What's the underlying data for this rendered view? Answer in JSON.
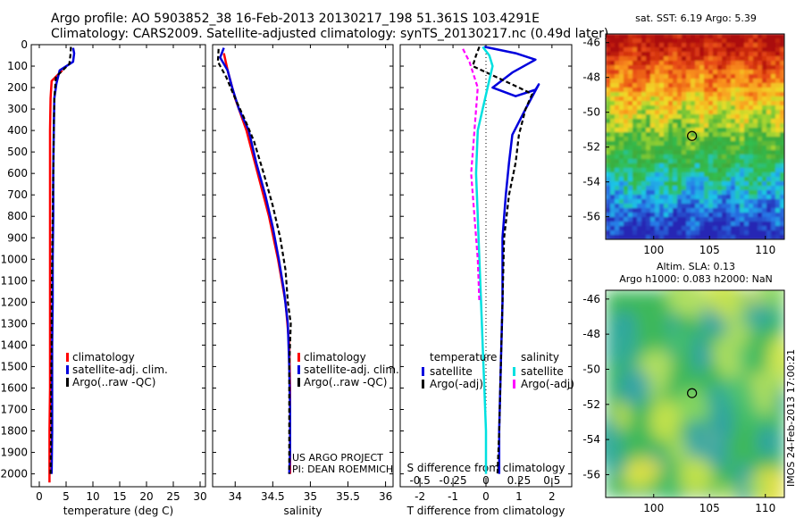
{
  "header": {
    "line1": "Argo profile: AO 5903852_38 16-Feb-2013 20130217_198 51.361S 103.4291E",
    "line2": "Climatology: CARS2009. Satellite-adjusted climatology: synTS_20130217.nc (0.49d later)"
  },
  "colors": {
    "climatology": "#ff0000",
    "satellite": "#0000dd",
    "argo": "#000000",
    "sat_salinity": "#00e0e0",
    "argo_salinity": "#ff00ff"
  },
  "chart_data": [
    {
      "type": "line",
      "id": "temperature",
      "xlabel": "temperature (deg C)",
      "ylabel": "",
      "xlim": [
        -1.5,
        31
      ],
      "ylim": [
        2060,
        0
      ],
      "xticks": [
        0,
        5,
        10,
        15,
        20,
        25,
        30
      ],
      "yticks": [
        0,
        100,
        200,
        300,
        400,
        500,
        600,
        700,
        800,
        900,
        1000,
        1100,
        1200,
        1300,
        1400,
        1500,
        1600,
        1700,
        1800,
        1900,
        2000
      ],
      "legend": [
        "climatology",
        "satellite-adj. clim.",
        "Argo(..raw -QC)"
      ],
      "series": [
        {
          "name": "climatology",
          "color": "#ff0000",
          "dash": "",
          "width": 2.5,
          "points": [
            [
              4.3,
              120
            ],
            [
              2.3,
              170
            ],
            [
              2.1,
              250
            ],
            [
              2.0,
              400
            ],
            [
              2.0,
              600
            ],
            [
              2.0,
              800
            ],
            [
              2.0,
              1000
            ],
            [
              2.0,
              1200
            ],
            [
              2.0,
              1400
            ],
            [
              2.0,
              1600
            ],
            [
              1.9,
              1800
            ],
            [
              1.9,
              2000
            ],
            [
              1.9,
              2040
            ]
          ]
        },
        {
          "name": "satellite-adj. clim.",
          "color": "#0000dd",
          "dash": "",
          "width": 2.5,
          "points": [
            [
              6.3,
              15
            ],
            [
              6.5,
              40
            ],
            [
              6.3,
              80
            ],
            [
              3.8,
              120
            ],
            [
              3.2,
              180
            ],
            [
              2.8,
              250
            ],
            [
              2.7,
              400
            ],
            [
              2.6,
              600
            ],
            [
              2.6,
              800
            ],
            [
              2.5,
              1000
            ],
            [
              2.5,
              1200
            ],
            [
              2.4,
              1400
            ],
            [
              2.4,
              1600
            ],
            [
              2.4,
              1800
            ],
            [
              2.3,
              2000
            ]
          ]
        },
        {
          "name": "Argo(..raw -QC)",
          "color": "#000000",
          "dash": "5,3",
          "width": 2.2,
          "points": [
            [
              5.9,
              10
            ],
            [
              5.8,
              50
            ],
            [
              5.6,
              90
            ],
            [
              3.1,
              150
            ],
            [
              2.8,
              250
            ],
            [
              2.7,
              400
            ],
            [
              2.6,
              600
            ],
            [
              2.5,
              800
            ],
            [
              2.4,
              1000
            ],
            [
              2.3,
              1200
            ],
            [
              2.3,
              1400
            ],
            [
              2.2,
              1600
            ],
            [
              2.2,
              1800
            ],
            [
              2.1,
              2000
            ]
          ]
        }
      ]
    },
    {
      "type": "line",
      "id": "salinity",
      "xlabel": "salinity",
      "ylabel": "",
      "xlim": [
        33.7,
        36.1
      ],
      "ylim": [
        2060,
        0
      ],
      "xticks": [
        34,
        34.5,
        35,
        35.5,
        36
      ],
      "xticklabels": [
        "34",
        "34.5",
        "35",
        "35.5",
        "36"
      ],
      "legend": [
        "climatology",
        "satellite-adj. clim.",
        "Argo(..raw -QC)"
      ],
      "annotation": [
        "US ARGO PROJECT",
        "PI: DEAN ROEMMICH"
      ],
      "series": [
        {
          "name": "climatology",
          "color": "#ff0000",
          "dash": "",
          "width": 2.5,
          "points": [
            [
              33.85,
              40
            ],
            [
              33.9,
              120
            ],
            [
              34.0,
              250
            ],
            [
              34.15,
              400
            ],
            [
              34.3,
              600
            ],
            [
              34.45,
              800
            ],
            [
              34.57,
              1000
            ],
            [
              34.67,
              1200
            ],
            [
              34.72,
              1400
            ],
            [
              34.73,
              1600
            ],
            [
              34.73,
              1800
            ],
            [
              34.73,
              2000
            ]
          ]
        },
        {
          "name": "satellite-adj. clim.",
          "color": "#0000dd",
          "dash": "",
          "width": 2.5,
          "points": [
            [
              33.85,
              15
            ],
            [
              33.8,
              60
            ],
            [
              33.9,
              120
            ],
            [
              33.96,
              200
            ],
            [
              34.05,
              300
            ],
            [
              34.18,
              400
            ],
            [
              34.28,
              550
            ],
            [
              34.4,
              700
            ],
            [
              34.5,
              850
            ],
            [
              34.58,
              1000
            ],
            [
              34.65,
              1150
            ],
            [
              34.7,
              1300
            ],
            [
              34.72,
              1500
            ],
            [
              34.73,
              1700
            ],
            [
              34.73,
              1900
            ],
            [
              34.72,
              2000
            ]
          ]
        },
        {
          "name": "Argo(..raw -QC)",
          "color": "#000000",
          "dash": "5,3",
          "width": 2.2,
          "points": [
            [
              33.78,
              20
            ],
            [
              33.77,
              80
            ],
            [
              33.88,
              150
            ],
            [
              34.0,
              250
            ],
            [
              34.13,
              350
            ],
            [
              34.25,
              450
            ],
            [
              34.38,
              600
            ],
            [
              34.5,
              750
            ],
            [
              34.6,
              900
            ],
            [
              34.67,
              1050
            ],
            [
              34.7,
              1200
            ],
            [
              34.74,
              1300
            ],
            [
              34.72,
              1500
            ],
            [
              34.72,
              1700
            ],
            [
              34.72,
              1900
            ],
            [
              34.72,
              2000
            ]
          ]
        }
      ]
    },
    {
      "type": "line",
      "id": "difference",
      "xlabel": "T difference from climatology",
      "xlabel_top": "S difference from climatology",
      "xlim": [
        -2.6,
        2.6
      ],
      "ylim": [
        2060,
        0
      ],
      "xticks": [
        -2,
        -1,
        0,
        1,
        2
      ],
      "xticks_top": [
        -0.5,
        -0.25,
        0,
        0.25,
        0.5
      ],
      "xticklabels_top": [
        "-0.5",
        "-0.25",
        "0",
        "0.25",
        "0.5"
      ],
      "legend_titles": [
        "temperature",
        "salinity"
      ],
      "legend": [
        "satellite",
        "Argo(-adj)",
        "satellite",
        "Argo(-adj)"
      ],
      "series": [
        {
          "name": "satellite",
          "color": "#0000dd",
          "dash": "",
          "width": 2.5,
          "points": [
            [
              -0.05,
              10
            ],
            [
              0.9,
              40
            ],
            [
              1.5,
              70
            ],
            [
              0.8,
              130
            ],
            [
              0.2,
              200
            ],
            [
              0.9,
              240
            ],
            [
              1.5,
              210
            ],
            [
              1.6,
              185
            ],
            [
              1.2,
              300
            ],
            [
              0.8,
              420
            ],
            [
              0.7,
              550
            ],
            [
              0.6,
              700
            ],
            [
              0.5,
              900
            ],
            [
              0.5,
              1200
            ],
            [
              0.45,
              1500
            ],
            [
              0.4,
              1800
            ],
            [
              0.4,
              2000
            ]
          ]
        },
        {
          "name": "Argo(-adj)",
          "color": "#000000",
          "dash": "5,3",
          "width": 2.2,
          "points": [
            [
              -0.2,
              10
            ],
            [
              -0.3,
              50
            ],
            [
              -0.4,
              100
            ],
            [
              1.0,
              200
            ],
            [
              1.4,
              230
            ],
            [
              1.2,
              300
            ],
            [
              1.0,
              420
            ],
            [
              0.9,
              550
            ],
            [
              0.7,
              700
            ],
            [
              0.55,
              900
            ],
            [
              0.5,
              1200
            ],
            [
              0.45,
              1500
            ],
            [
              0.4,
              1800
            ],
            [
              0.35,
              2000
            ]
          ]
        },
        {
          "name": "satellite",
          "color": "#00e0e0",
          "dash": "",
          "width": 2.5,
          "points": [
            [
              -0.1,
              10
            ],
            [
              0.1,
              50
            ],
            [
              0.2,
              100
            ],
            [
              0.05,
              200
            ],
            [
              -0.25,
              400
            ],
            [
              -0.3,
              600
            ],
            [
              -0.25,
              800
            ],
            [
              -0.2,
              1000
            ],
            [
              -0.15,
              1200
            ],
            [
              -0.1,
              1400
            ],
            [
              -0.05,
              1600
            ],
            [
              0.0,
              1800
            ],
            [
              0.0,
              2000
            ]
          ]
        },
        {
          "name": "Argo(-adj)",
          "color": "#ff00ff",
          "dash": "5,3",
          "width": 2.2,
          "points": [
            [
              -0.7,
              20
            ],
            [
              -0.5,
              80
            ],
            [
              -0.25,
              200
            ],
            [
              -0.35,
              400
            ],
            [
              -0.45,
              600
            ],
            [
              -0.35,
              800
            ],
            [
              -0.25,
              1000
            ],
            [
              -0.2,
              1200
            ]
          ]
        }
      ]
    },
    {
      "type": "heatmap",
      "id": "sst_map",
      "title": "sat. SST: 6.19 Argo: 5.39",
      "xlim": [
        95.7,
        111.7
      ],
      "ylim": [
        -57.3,
        -45.5
      ],
      "xticks": [
        100,
        105,
        110
      ],
      "yticks": [
        -46,
        -48,
        -50,
        -52,
        -54,
        -56
      ],
      "marker": [
        103.43,
        -51.36
      ]
    },
    {
      "type": "heatmap",
      "id": "sla_map",
      "title_lines": [
        "Altim. SLA: 0.13",
        "Argo h1000: 0.083 h2000: NaN"
      ],
      "xlim": [
        95.7,
        111.7
      ],
      "ylim": [
        -57.3,
        -45.5
      ],
      "xticks": [
        100,
        105,
        110
      ],
      "yticks": [
        -46,
        -48,
        -50,
        -52,
        -54,
        -56
      ],
      "marker": [
        103.43,
        -51.36
      ]
    }
  ],
  "footer": {
    "stamp": "IMOS 24-Feb-2013 17:00:21"
  }
}
